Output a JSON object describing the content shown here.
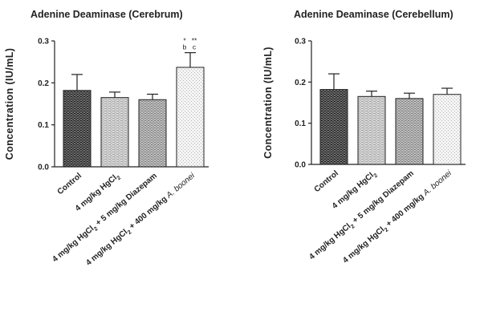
{
  "chart_data": [
    {
      "type": "bar",
      "title": "Adenine Deaminase (Cerebrum)",
      "ylabel": "Concentration (IU/mL)",
      "ylim": [
        0,
        0.3
      ],
      "yticks": [
        "0.0",
        "0.1",
        "0.2",
        "0.3"
      ],
      "categories": [
        {
          "prefix": "",
          "sub": "",
          "mid": "",
          "sub2": "",
          "suffix": "Control",
          "italic": ""
        },
        {
          "prefix": "4 mg/kg HgCl",
          "sub": "2",
          "mid": "",
          "sub2": "",
          "suffix": "",
          "italic": ""
        },
        {
          "prefix": "4 mg/kg HgCl",
          "sub": "2",
          "mid": "",
          "sub2": "",
          "suffix": " + 5 mg/kg Diazepam",
          "italic": ""
        },
        {
          "prefix": "4 mg/kg HgCl",
          "sub": "2",
          "mid": "",
          "sub2": "",
          "suffix": " + 400 mg/kg ",
          "italic": "A. boonei"
        }
      ],
      "values": [
        0.182,
        0.165,
        0.16,
        0.237
      ],
      "errors": [
        0.038,
        0.013,
        0.013,
        0.035
      ],
      "patterns": [
        "dark",
        "light",
        "medium",
        "dotted"
      ],
      "annotations": [
        {
          "bar": 3,
          "top": [
            "*",
            "**"
          ],
          "bottom": [
            "b",
            "c"
          ]
        }
      ]
    },
    {
      "type": "bar",
      "title": "Adenine Deaminase (Cerebellum)",
      "ylabel": "Concentration (IU/mL)",
      "ylim": [
        0,
        0.3
      ],
      "yticks": [
        "0.0",
        "0.1",
        "0.2",
        "0.3"
      ],
      "categories": [
        {
          "prefix": "",
          "sub": "",
          "suffix": "Control",
          "italic": ""
        },
        {
          "prefix": "4 mg/kg HgCl",
          "sub": "2",
          "suffix": "",
          "italic": ""
        },
        {
          "prefix": "4 mg/kg HgCl",
          "sub": "2",
          "suffix": " + 5 mg/kg Diazepam",
          "italic": ""
        },
        {
          "prefix": "4 mg/kg HgCl",
          "sub": "2",
          "suffix": " + 400 mg/kg ",
          "italic": "A. boonei"
        }
      ],
      "values": [
        0.182,
        0.165,
        0.16,
        0.17
      ],
      "errors": [
        0.038,
        0.013,
        0.013,
        0.015
      ],
      "patterns": [
        "dark",
        "light",
        "medium",
        "dotted"
      ],
      "annotations": []
    }
  ]
}
